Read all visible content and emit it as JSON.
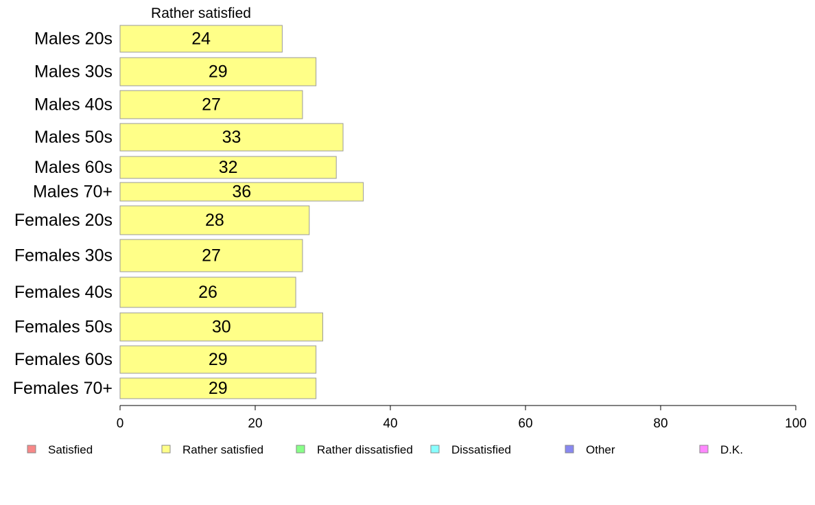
{
  "chart_data": {
    "type": "bar",
    "orientation": "horizontal",
    "series_title": "Rather satisfied",
    "categories": [
      "Males 20s",
      "Males 30s",
      "Males 40s",
      "Males 50s",
      "Males 60s",
      "Males 70+",
      "Females 20s",
      "Females 30s",
      "Females 40s",
      "Females 50s",
      "Females 60s",
      "Females 70+"
    ],
    "values": [
      24,
      29,
      27,
      33,
      32,
      36,
      28,
      27,
      26,
      30,
      29,
      29
    ],
    "value_labels": [
      "24",
      "29",
      "27",
      "33",
      "32",
      "36",
      "28",
      "27",
      "26",
      "30",
      "29",
      "29"
    ],
    "bar_color": "#ffff88",
    "xlim": [
      0,
      100
    ],
    "xticks": [
      0,
      20,
      40,
      60,
      80,
      100
    ],
    "xtick_labels": [
      "0",
      "20",
      "40",
      "60",
      "80",
      "100"
    ],
    "grid": false,
    "legend_position": "bottom",
    "legend": [
      {
        "label": "Satisfied",
        "color": "#f88888"
      },
      {
        "label": "Rather satisfied",
        "color": "#ffff88"
      },
      {
        "label": "Rather dissatisfied",
        "color": "#88ff88"
      },
      {
        "label": "Dissatisfied",
        "color": "#88ffff"
      },
      {
        "label": "Other",
        "color": "#8888f0"
      },
      {
        "label": "D.K.",
        "color": "#ff88ff"
      }
    ]
  }
}
